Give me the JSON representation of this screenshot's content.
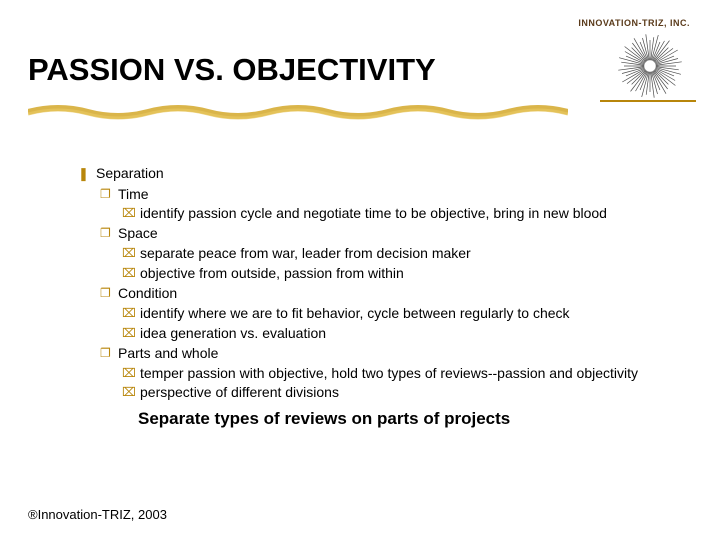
{
  "brand": "INNOVATION-TRIZ, INC.",
  "title": "PASSION VS. OBJECTIVITY",
  "colors": {
    "accent": "#b8860b",
    "text": "#000000",
    "background": "#ffffff",
    "brand_text": "#5a3a1a"
  },
  "bullets": {
    "level1_glyph": "❚",
    "level2_glyph": "❐",
    "level3_glyph": "⌧"
  },
  "outline": {
    "root": "Separation",
    "items": [
      {
        "label": "Time",
        "sub": [
          "identify passion cycle and negotiate time to be objective, bring in new blood"
        ]
      },
      {
        "label": "Space",
        "sub": [
          "separate peace from war, leader from decision maker",
          "objective from outside, passion from within"
        ]
      },
      {
        "label": "Condition",
        "sub": [
          "identify where we are to fit behavior, cycle between regularly to check",
          "idea generation vs. evaluation"
        ]
      },
      {
        "label": "Parts and whole",
        "sub": [
          "temper passion with objective, hold two types of reviews--passion and objectivity",
          "perspective of different divisions"
        ]
      }
    ]
  },
  "conclusion": "Separate types of reviews on parts of projects",
  "footer": "®Innovation-TRIZ, 2003",
  "logo": {
    "type": "sunburst",
    "ray_color": "#4a4a4a",
    "center_color": "#ffffff",
    "ray_count": 48
  }
}
